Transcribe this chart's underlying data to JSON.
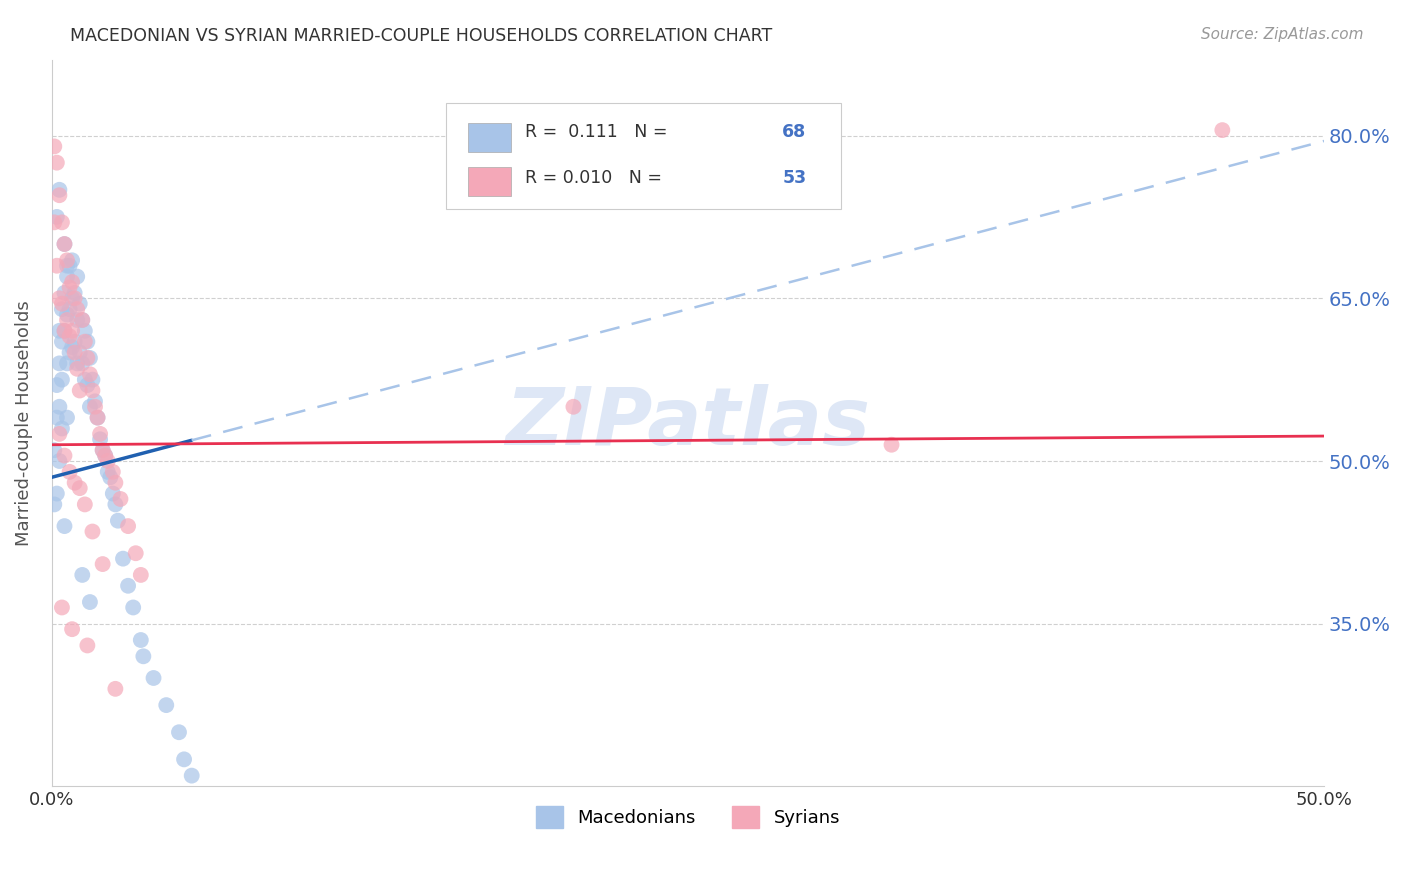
{
  "title": "MACEDONIAN VS SYRIAN MARRIED-COUPLE HOUSEHOLDS CORRELATION CHART",
  "source": "Source: ZipAtlas.com",
  "ylabel": "Married-couple Households",
  "xlim": [
    0.0,
    50.0
  ],
  "ylim": [
    20.0,
    87.0
  ],
  "yticks": [
    35.0,
    50.0,
    65.0,
    80.0
  ],
  "ytick_labels": [
    "35.0%",
    "50.0%",
    "65.0%",
    "80.0%"
  ],
  "legend_macedonians": "Macedonians",
  "legend_syrians": "Syrians",
  "macedonian_R": "0.111",
  "macedonian_N": "68",
  "syrian_R": "0.010",
  "syrian_N": "53",
  "macedonian_color": "#a8c4e8",
  "syrian_color": "#f4a8b8",
  "macedonian_line_color": "#2060b0",
  "syrian_line_color": "#e83050",
  "dashed_line_color": "#a8c4e8",
  "background_color": "#ffffff",
  "grid_color": "#d0d0d0",
  "watermark": "ZIPatlas",
  "watermark_color": "#c8d8f0",
  "title_color": "#333333",
  "source_color": "#999999",
  "right_axis_color": "#4472c4",
  "mac_solid_end": 5.5,
  "mac_line_x0": 0.0,
  "mac_line_y0": 48.5,
  "mac_line_x1": 50.0,
  "mac_line_y1": 79.5,
  "syr_line_x0": 0.0,
  "syr_line_y0": 51.5,
  "syr_line_x1": 50.0,
  "syr_line_y1": 52.3,
  "macedonian_x": [
    0.1,
    0.1,
    0.2,
    0.2,
    0.2,
    0.3,
    0.3,
    0.3,
    0.3,
    0.4,
    0.4,
    0.4,
    0.4,
    0.5,
    0.5,
    0.5,
    0.6,
    0.6,
    0.6,
    0.6,
    0.7,
    0.7,
    0.7,
    0.8,
    0.8,
    0.8,
    0.9,
    0.9,
    1.0,
    1.0,
    1.0,
    1.1,
    1.1,
    1.2,
    1.2,
    1.3,
    1.3,
    1.4,
    1.4,
    1.5,
    1.5,
    1.6,
    1.7,
    1.8,
    1.9,
    2.0,
    2.1,
    2.2,
    2.3,
    2.4,
    2.5,
    2.6,
    2.8,
    3.0,
    3.2,
    3.5,
    3.6,
    4.0,
    4.5,
    5.0,
    5.2,
    5.5,
    0.2,
    0.3,
    0.5,
    0.6,
    1.2,
    1.5
  ],
  "macedonian_y": [
    51.0,
    46.0,
    57.0,
    54.0,
    47.0,
    62.0,
    59.0,
    55.0,
    50.0,
    64.0,
    61.0,
    57.5,
    53.0,
    65.5,
    62.0,
    44.0,
    67.0,
    63.5,
    59.0,
    54.0,
    68.0,
    64.0,
    60.0,
    68.5,
    65.0,
    60.5,
    65.5,
    61.0,
    67.0,
    63.0,
    59.0,
    64.5,
    60.0,
    63.0,
    59.0,
    62.0,
    57.5,
    61.0,
    57.0,
    59.5,
    55.0,
    57.5,
    55.5,
    54.0,
    52.0,
    51.0,
    50.5,
    49.0,
    48.5,
    47.0,
    46.0,
    44.5,
    41.0,
    38.5,
    36.5,
    33.5,
    32.0,
    30.0,
    27.5,
    25.0,
    22.5,
    21.0,
    72.5,
    75.0,
    70.0,
    68.0,
    39.5,
    37.0
  ],
  "syrian_x": [
    0.1,
    0.1,
    0.2,
    0.2,
    0.3,
    0.3,
    0.4,
    0.4,
    0.5,
    0.5,
    0.6,
    0.6,
    0.7,
    0.7,
    0.8,
    0.8,
    0.9,
    0.9,
    1.0,
    1.0,
    1.1,
    1.2,
    1.3,
    1.4,
    1.5,
    1.6,
    1.7,
    1.8,
    1.9,
    2.0,
    2.1,
    2.2,
    2.4,
    2.5,
    2.7,
    3.0,
    3.3,
    3.5,
    0.3,
    0.5,
    0.7,
    0.9,
    1.1,
    1.3,
    1.6,
    2.0,
    0.4,
    0.8,
    1.4,
    2.5,
    20.5,
    33.0,
    46.0
  ],
  "syrian_y": [
    79.0,
    72.0,
    77.5,
    68.0,
    74.5,
    65.0,
    72.0,
    64.5,
    70.0,
    62.0,
    68.5,
    63.0,
    66.0,
    61.5,
    66.5,
    62.0,
    65.0,
    60.0,
    64.0,
    58.5,
    56.5,
    63.0,
    61.0,
    59.5,
    58.0,
    56.5,
    55.0,
    54.0,
    52.5,
    51.0,
    50.5,
    50.0,
    49.0,
    48.0,
    46.5,
    44.0,
    41.5,
    39.5,
    52.5,
    50.5,
    49.0,
    48.0,
    47.5,
    46.0,
    43.5,
    40.5,
    36.5,
    34.5,
    33.0,
    29.0,
    55.0,
    51.5,
    80.5
  ]
}
